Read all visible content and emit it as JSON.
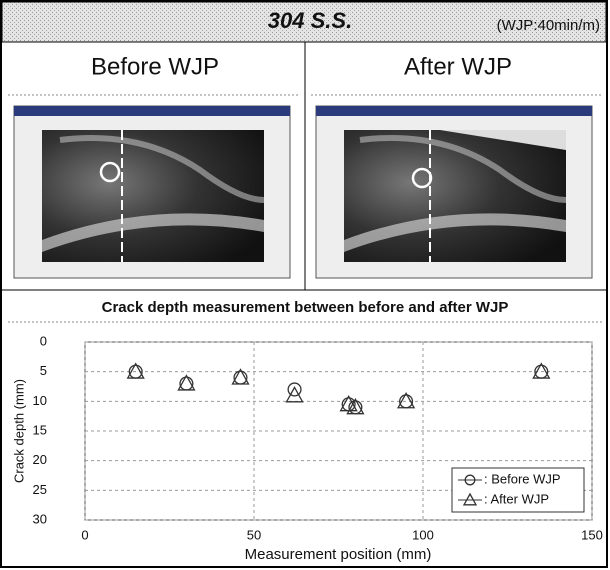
{
  "header": {
    "title": "304 S.S.",
    "condition": "(WJP:40min/m)"
  },
  "panels": [
    {
      "label": "Before WJP"
    },
    {
      "label": "After WJP"
    }
  ],
  "chart_data": {
    "type": "scatter",
    "title": "Crack depth measurement between before and after WJP",
    "x_label": "Measurement position (mm)",
    "y_label": "Crack depth (mm)",
    "xlim": [
      0,
      150
    ],
    "xticks": [
      0,
      50,
      100,
      150
    ],
    "ylim": [
      0,
      30
    ],
    "yticks": [
      0,
      5,
      10,
      15,
      20,
      25,
      30
    ],
    "y_inverted": true,
    "grid": true,
    "legend": "lower right",
    "series": [
      {
        "name": ": Before WJP",
        "marker": "circle",
        "color": "#333333",
        "x": [
          15,
          30,
          46,
          62,
          78,
          80,
          95,
          135
        ],
        "values": [
          5,
          7,
          6,
          8,
          10.5,
          11,
          10,
          5
        ]
      },
      {
        "name": ": After WJP",
        "marker": "triangle",
        "color": "#333333",
        "x": [
          15,
          30,
          46,
          62,
          78,
          80,
          95,
          135
        ],
        "values": [
          5,
          7,
          6,
          9,
          10.5,
          11,
          10,
          5
        ]
      }
    ]
  }
}
